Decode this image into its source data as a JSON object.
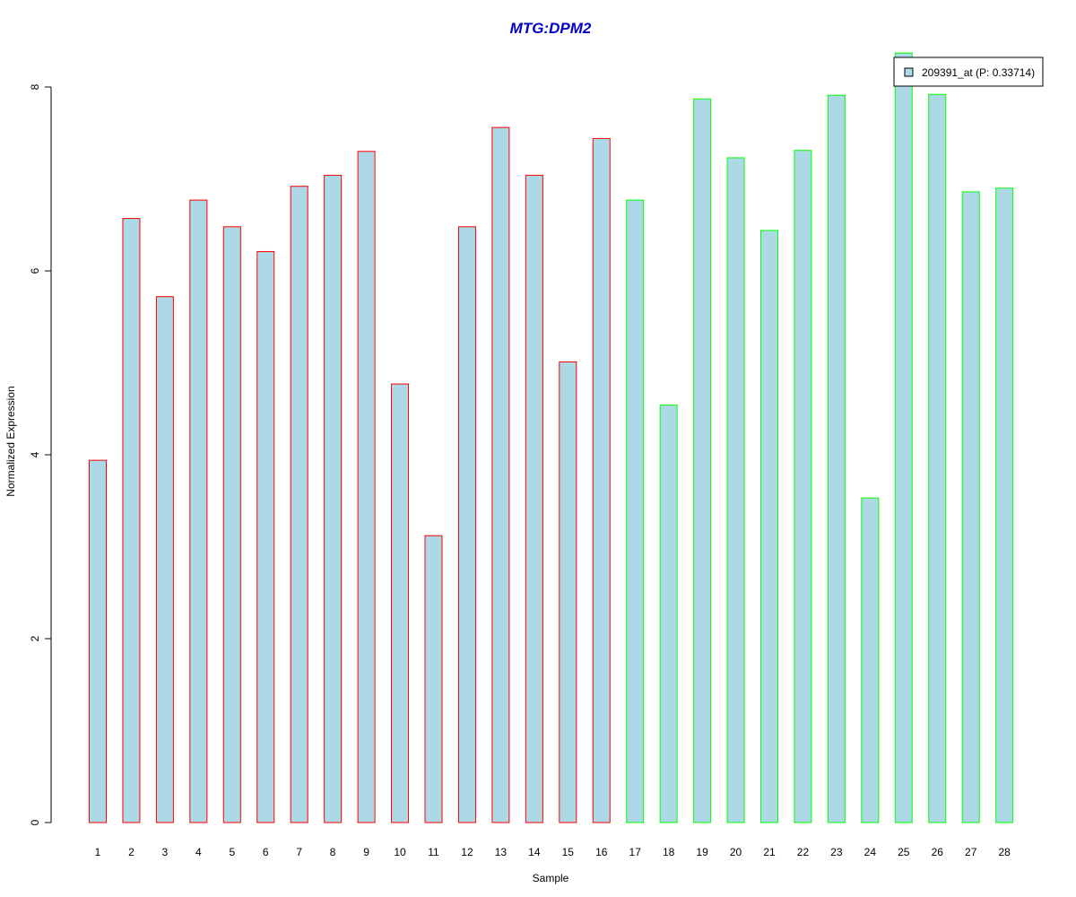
{
  "chart_data": {
    "type": "bar",
    "title": "MTG:DPM2",
    "xlabel": "Sample",
    "ylabel": "Normalized Expression",
    "categories": [
      "1",
      "2",
      "3",
      "4",
      "5",
      "6",
      "7",
      "8",
      "9",
      "10",
      "11",
      "12",
      "13",
      "14",
      "15",
      "16",
      "17",
      "18",
      "19",
      "20",
      "21",
      "22",
      "23",
      "24",
      "25",
      "26",
      "27",
      "28"
    ],
    "series": [
      {
        "name": "209391_at (P: 0.33714)",
        "values": [
          3.94,
          6.57,
          5.72,
          6.77,
          6.48,
          6.21,
          6.92,
          7.04,
          7.3,
          4.77,
          3.12,
          6.48,
          7.56,
          7.04,
          5.01,
          7.44,
          6.77,
          4.54,
          7.87,
          7.23,
          6.44,
          7.31,
          7.91,
          3.53,
          8.37,
          7.92,
          6.86,
          6.9
        ]
      }
    ],
    "groups": [
      {
        "samples": [
          1,
          2,
          3,
          4,
          5,
          6,
          7,
          8,
          9,
          10,
          11,
          12,
          13,
          14,
          15,
          16
        ],
        "border_color": "#ff0000"
      },
      {
        "samples": [
          17,
          18,
          19,
          20,
          21,
          22,
          23,
          24,
          25,
          26,
          27,
          28
        ],
        "border_color": "#00ff00"
      }
    ],
    "ylim": [
      0,
      8
    ],
    "y_ticks": [
      "0",
      "2",
      "4",
      "6",
      "8"
    ],
    "grid": false,
    "legend_position": "top-right",
    "colors": {
      "bar_fill": "#add8e6",
      "title": "#0000cc"
    }
  }
}
